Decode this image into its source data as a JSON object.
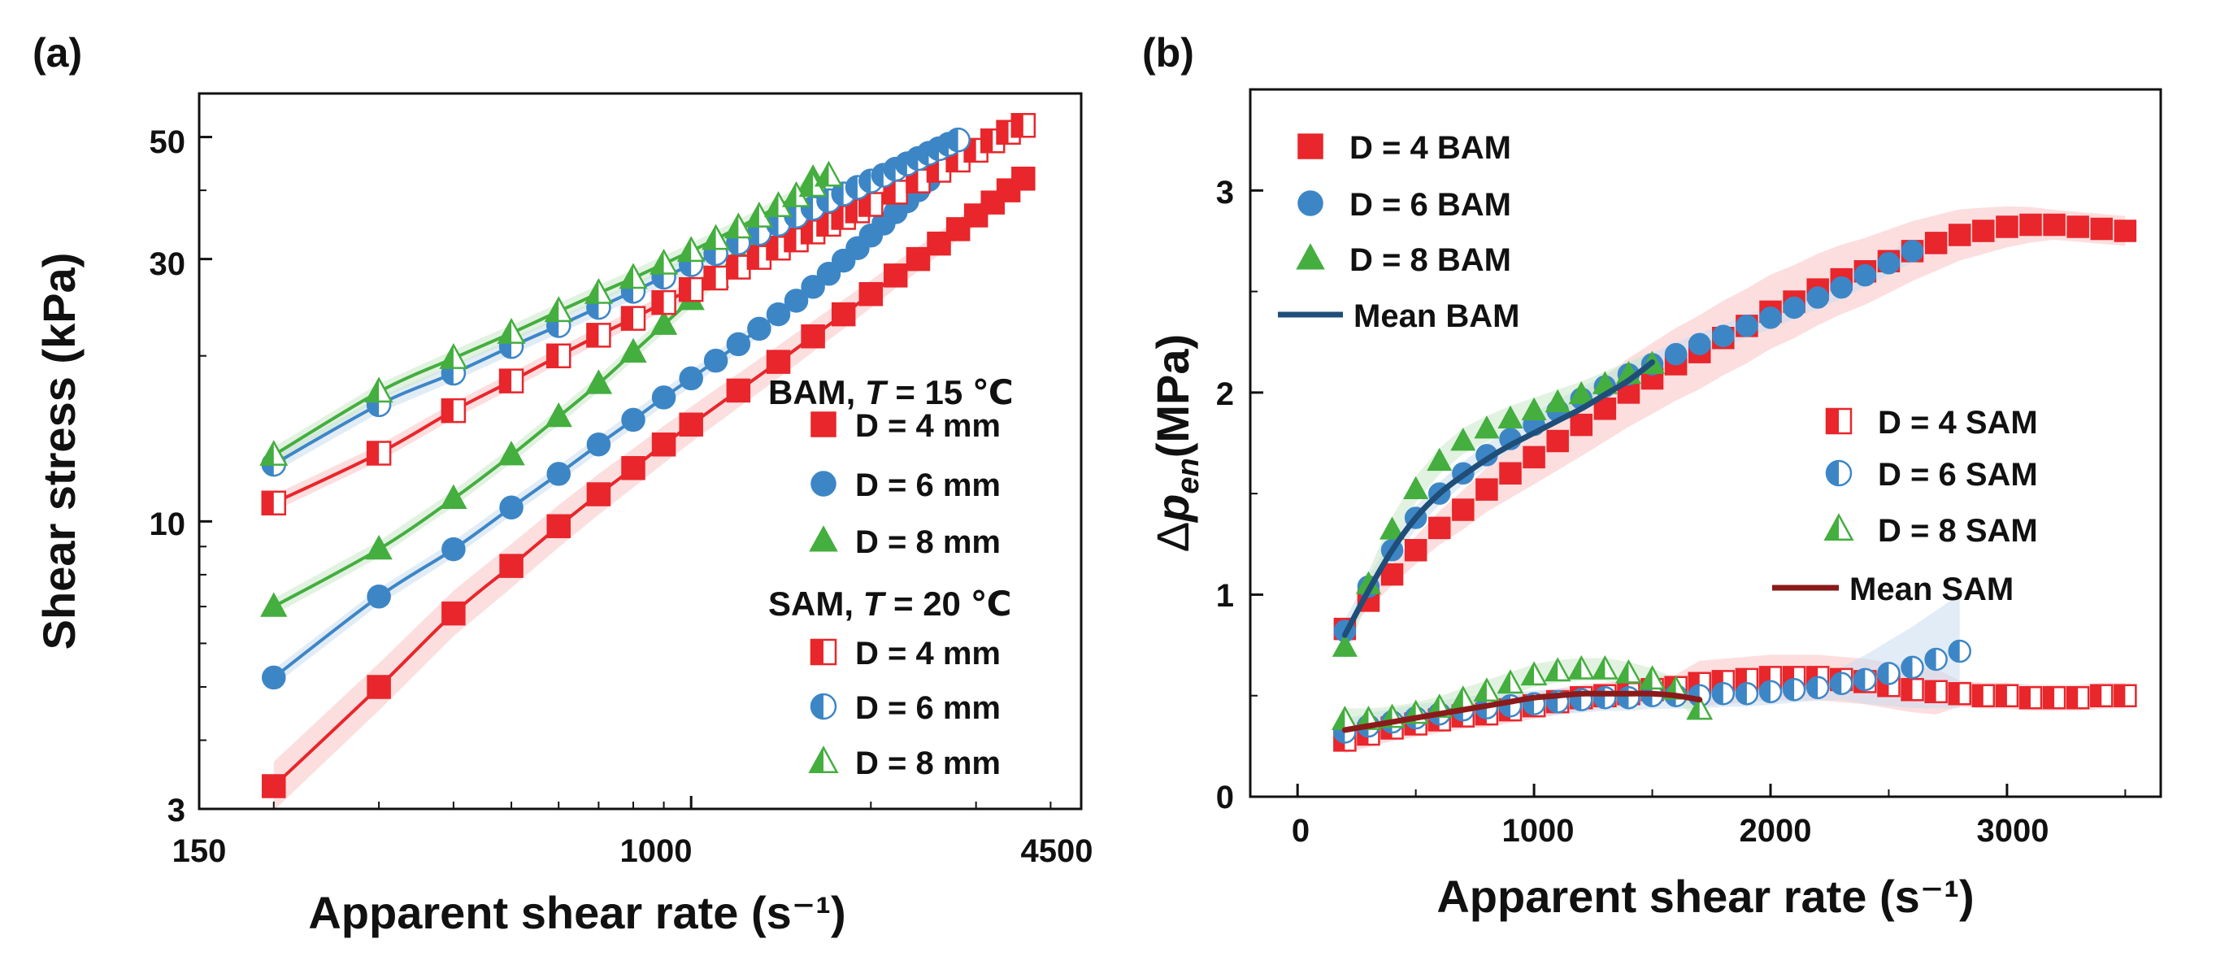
{
  "colors": {
    "red": "#e8262b",
    "blue": "#3d86c6",
    "green": "#44ae3f",
    "navy": "#1f4e79",
    "darkred": "#8b1a1a",
    "axis": "#111111"
  },
  "panel_a": {
    "label": "(a)",
    "xlabel": "Apparent  shear rate (s⁻¹)",
    "ylabel": "Shear stress (kPa)",
    "xticks": [
      "150",
      "1000",
      "4500"
    ],
    "yticks": [
      "3",
      "10",
      "30",
      "50"
    ],
    "legend": {
      "bam_prefix": "BAM,",
      "bam_T": "T",
      "bam_suffix": " = 15 ℃",
      "sam_prefix": "SAM,",
      "sam_T": "T",
      "sam_suffix": " = 20 ℃",
      "entries": [
        "D = 4 mm",
        "D = 6 mm",
        "D = 8 mm"
      ]
    }
  },
  "panel_b": {
    "label": "(b)",
    "xlabel": "Apparent shear rate (s⁻¹)",
    "ylabel_delta": "Δ",
    "ylabel_p": "p",
    "ylabel_sub": "en",
    "ylabel_unit": "(MPa)",
    "xticks": [
      "0",
      "1000",
      "2000",
      "3000"
    ],
    "yticks": [
      "0",
      "1",
      "2",
      "3"
    ],
    "legend_bam": [
      "D = 4 BAM",
      "D = 6 BAM",
      "D = 8 BAM",
      "Mean BAM"
    ],
    "legend_sam": [
      "D = 4 SAM",
      "D = 6 SAM",
      "D = 8 SAM",
      "Mean SAM"
    ]
  },
  "chart_data": [
    {
      "type": "scatter",
      "title": "(a)",
      "xscale": "log",
      "yscale": "log",
      "xlim": [
        150,
        4500
      ],
      "ylim": [
        3,
        60
      ],
      "xlabel": "Apparent shear rate (s^-1)",
      "ylabel": "Shear stress (kPa)",
      "series": [
        {
          "name": "BAM D = 4 mm",
          "marker": "square",
          "fill": "full",
          "color": "red",
          "x": [
            200,
            300,
            400,
            500,
            600,
            700,
            800,
            900,
            1000,
            1200,
            1400,
            1600,
            1800,
            2000,
            2200,
            2400,
            2600,
            2800,
            3000,
            3200,
            3400,
            3600
          ],
          "y": [
            3.3,
            5.0,
            6.8,
            8.3,
            9.8,
            11.2,
            12.5,
            13.8,
            15.0,
            17.3,
            19.5,
            21.7,
            23.8,
            25.9,
            28.0,
            30.0,
            32.0,
            34.0,
            36.0,
            38.0,
            40.0,
            42.0
          ]
        },
        {
          "name": "BAM D = 6 mm",
          "marker": "circle",
          "fill": "full",
          "color": "blue",
          "x": [
            200,
            300,
            400,
            500,
            600,
            700,
            800,
            900,
            1000,
            1100,
            1200,
            1300,
            1400,
            1500,
            1600,
            1700,
            1800,
            1900,
            2000,
            2100,
            2200,
            2300,
            2400,
            2500,
            2600,
            2700
          ],
          "y": [
            5.2,
            7.3,
            8.9,
            10.6,
            12.2,
            13.8,
            15.3,
            16.8,
            18.2,
            19.6,
            21.0,
            22.4,
            23.8,
            25.2,
            26.7,
            28.2,
            29.8,
            31.4,
            33.1,
            34.8,
            36.5,
            38.2,
            40.0,
            41.8,
            43.6,
            45.5
          ]
        },
        {
          "name": "BAM D = 8 mm",
          "marker": "triangle",
          "fill": "full",
          "color": "green",
          "x": [
            200,
            300,
            400,
            500,
            600,
            700,
            800,
            900,
            1000,
            1100,
            1200,
            1300,
            1400,
            1500,
            1600
          ],
          "y": [
            7.0,
            8.9,
            11.0,
            13.2,
            15.5,
            17.8,
            20.3,
            22.8,
            25.3,
            27.8,
            30.5,
            33.2,
            36.0,
            39.0,
            42.0
          ]
        },
        {
          "name": "SAM D = 4 mm",
          "marker": "square",
          "fill": "half",
          "color": "red",
          "x": [
            200,
            300,
            400,
            500,
            600,
            700,
            800,
            900,
            1000,
            1100,
            1200,
            1300,
            1400,
            1500,
            1600,
            1700,
            1800,
            1900,
            2000,
            2200,
            2400,
            2600,
            2800,
            3000,
            3200,
            3400,
            3600
          ],
          "y": [
            10.8,
            13.3,
            15.9,
            18.0,
            20.0,
            21.8,
            23.4,
            25.0,
            26.4,
            27.7,
            29.0,
            30.2,
            31.4,
            32.5,
            33.6,
            34.7,
            35.7,
            36.7,
            37.7,
            39.7,
            41.6,
            43.5,
            45.4,
            47.3,
            49.2,
            51.0,
            52.5
          ]
        },
        {
          "name": "SAM D = 6 mm",
          "marker": "circle",
          "fill": "half",
          "color": "blue",
          "x": [
            200,
            300,
            400,
            500,
            600,
            700,
            800,
            900,
            1000,
            1100,
            1200,
            1300,
            1400,
            1500,
            1600,
            1700,
            1800,
            1900,
            2000,
            2100,
            2200,
            2300,
            2400,
            2500,
            2600,
            2700,
            2800
          ],
          "y": [
            12.7,
            16.3,
            18.6,
            20.8,
            22.7,
            24.5,
            26.2,
            27.8,
            29.3,
            30.7,
            32.1,
            33.4,
            34.7,
            35.9,
            37.1,
            38.3,
            39.4,
            40.5,
            41.6,
            42.6,
            43.7,
            44.7,
            45.7,
            46.7,
            47.6,
            48.5,
            49.4
          ]
        },
        {
          "name": "SAM D = 8 mm",
          "marker": "triangle",
          "fill": "half",
          "color": "green",
          "x": [
            200,
            300,
            400,
            500,
            600,
            700,
            800,
            900,
            1000,
            1100,
            1200,
            1300,
            1400,
            1500,
            1600,
            1700
          ],
          "y": [
            13.2,
            17.2,
            19.8,
            22.0,
            24.1,
            26.0,
            27.7,
            29.4,
            31.0,
            32.6,
            34.2,
            35.8,
            37.4,
            39.0,
            40.7,
            42.5
          ]
        }
      ]
    },
    {
      "type": "scatter",
      "title": "(b)",
      "xlim": [
        -200,
        3650
      ],
      "ylim": [
        0,
        3.5
      ],
      "xlabel": "Apparent shear rate (s^-1)",
      "ylabel": "Δp_en (MPa)",
      "series": [
        {
          "name": "D = 4 BAM",
          "marker": "square",
          "fill": "full",
          "color": "red",
          "x": [
            200,
            300,
            400,
            500,
            600,
            700,
            800,
            900,
            1000,
            1100,
            1200,
            1300,
            1400,
            1500,
            1600,
            1700,
            1800,
            1900,
            2000,
            2100,
            2200,
            2300,
            2400,
            2500,
            2600,
            2700,
            2800,
            2900,
            3000,
            3100,
            3200,
            3300,
            3400,
            3500
          ],
          "y": [
            0.83,
            0.97,
            1.1,
            1.22,
            1.33,
            1.42,
            1.52,
            1.6,
            1.68,
            1.76,
            1.84,
            1.92,
            2.0,
            2.07,
            2.14,
            2.2,
            2.27,
            2.33,
            2.4,
            2.45,
            2.51,
            2.56,
            2.6,
            2.65,
            2.7,
            2.74,
            2.78,
            2.8,
            2.82,
            2.83,
            2.83,
            2.82,
            2.81,
            2.8
          ]
        },
        {
          "name": "D = 6 BAM",
          "marker": "circle",
          "fill": "full",
          "color": "blue",
          "x": [
            200,
            300,
            400,
            500,
            600,
            700,
            800,
            900,
            1000,
            1100,
            1200,
            1300,
            1400,
            1500,
            1600,
            1700,
            1800,
            1900,
            2000,
            2100,
            2200,
            2300,
            2400,
            2500,
            2600
          ],
          "y": [
            0.82,
            1.04,
            1.22,
            1.38,
            1.5,
            1.6,
            1.69,
            1.77,
            1.84,
            1.91,
            1.97,
            2.03,
            2.09,
            2.14,
            2.19,
            2.24,
            2.28,
            2.33,
            2.37,
            2.42,
            2.47,
            2.52,
            2.58,
            2.64,
            2.7
          ]
        },
        {
          "name": "D = 8 BAM",
          "marker": "triangle",
          "fill": "full",
          "color": "green",
          "x": [
            200,
            300,
            400,
            500,
            600,
            700,
            800,
            900,
            1000,
            1100,
            1200,
            1300,
            1400,
            1500
          ],
          "y": [
            0.74,
            1.05,
            1.32,
            1.52,
            1.66,
            1.76,
            1.82,
            1.87,
            1.91,
            1.95,
            1.99,
            2.04,
            2.09,
            2.14
          ]
        },
        {
          "name": "Mean BAM",
          "line": true,
          "color": "navy",
          "x": [
            200,
            300,
            400,
            500,
            600,
            700,
            800,
            900,
            1000,
            1100,
            1200,
            1300,
            1400,
            1500
          ],
          "y": [
            0.8,
            1.02,
            1.22,
            1.38,
            1.5,
            1.59,
            1.67,
            1.74,
            1.8,
            1.86,
            1.92,
            1.99,
            2.06,
            2.15
          ]
        },
        {
          "name": "D = 4 SAM",
          "marker": "square",
          "fill": "half",
          "color": "red",
          "x": [
            200,
            300,
            400,
            500,
            600,
            700,
            800,
            900,
            1000,
            1100,
            1200,
            1300,
            1400,
            1500,
            1600,
            1700,
            1800,
            1900,
            2000,
            2100,
            2200,
            2300,
            2400,
            2500,
            2600,
            2700,
            2800,
            2900,
            3000,
            3100,
            3200,
            3300,
            3400,
            3500
          ],
          "y": [
            0.28,
            0.31,
            0.34,
            0.36,
            0.38,
            0.4,
            0.41,
            0.43,
            0.45,
            0.47,
            0.49,
            0.5,
            0.51,
            0.53,
            0.54,
            0.56,
            0.57,
            0.58,
            0.59,
            0.59,
            0.59,
            0.58,
            0.57,
            0.55,
            0.53,
            0.52,
            0.51,
            0.5,
            0.5,
            0.49,
            0.49,
            0.49,
            0.5,
            0.5
          ]
        },
        {
          "name": "D = 6 SAM",
          "marker": "circle",
          "fill": "half",
          "color": "blue",
          "x": [
            200,
            300,
            400,
            500,
            600,
            700,
            800,
            900,
            1000,
            1100,
            1200,
            1300,
            1400,
            1500,
            1600,
            1700,
            1800,
            1900,
            2000,
            2100,
            2200,
            2300,
            2400,
            2500,
            2600,
            2700,
            2800
          ],
          "y": [
            0.32,
            0.35,
            0.37,
            0.39,
            0.41,
            0.43,
            0.44,
            0.45,
            0.46,
            0.47,
            0.48,
            0.49,
            0.49,
            0.5,
            0.5,
            0.5,
            0.51,
            0.51,
            0.52,
            0.53,
            0.54,
            0.56,
            0.58,
            0.61,
            0.64,
            0.68,
            0.72
          ]
        },
        {
          "name": "D = 8 SAM",
          "marker": "triangle",
          "fill": "half",
          "color": "green",
          "x": [
            200,
            300,
            400,
            500,
            600,
            700,
            800,
            900,
            1000,
            1100,
            1200,
            1300,
            1400,
            1500,
            1600,
            1700
          ],
          "y": [
            0.38,
            0.38,
            0.39,
            0.41,
            0.44,
            0.48,
            0.52,
            0.56,
            0.6,
            0.62,
            0.63,
            0.63,
            0.61,
            0.58,
            0.53,
            0.43
          ]
        },
        {
          "name": "Mean SAM",
          "line": true,
          "color": "darkred",
          "x": [
            200,
            300,
            400,
            500,
            600,
            700,
            800,
            900,
            1000,
            1100,
            1200,
            1300,
            1400,
            1500,
            1600,
            1700
          ],
          "y": [
            0.33,
            0.35,
            0.37,
            0.39,
            0.41,
            0.43,
            0.45,
            0.47,
            0.49,
            0.5,
            0.51,
            0.51,
            0.51,
            0.51,
            0.5,
            0.48
          ]
        }
      ]
    }
  ]
}
